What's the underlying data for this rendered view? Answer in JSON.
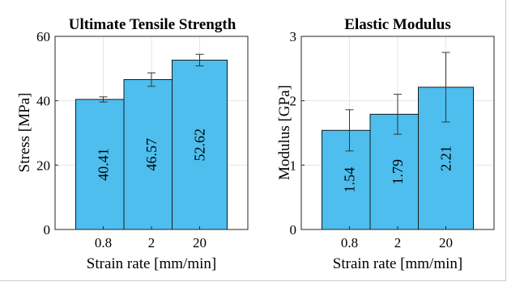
{
  "chart_data": [
    {
      "type": "bar",
      "title": "Ultimate Tensile Strength",
      "xlabel": "Strain rate [mm/min]",
      "ylabel": "Stress [MPa]",
      "categories": [
        "0.8",
        "2",
        "20"
      ],
      "values": [
        40.41,
        46.57,
        52.62
      ],
      "value_labels": [
        "40.41",
        "46.57",
        "52.62"
      ],
      "error": [
        0.8,
        2.1,
        1.8
      ],
      "ylim": [
        0,
        60
      ],
      "yticks": [
        "0",
        "20",
        "40",
        "60"
      ],
      "grid": true,
      "bar_color": "#4DBEEE"
    },
    {
      "type": "bar",
      "title": "Elastic Modulus",
      "xlabel": "Strain rate [mm/min]",
      "ylabel": "Modulus [GPa]",
      "categories": [
        "0.8",
        "2",
        "20"
      ],
      "values": [
        1.54,
        1.79,
        2.21
      ],
      "value_labels": [
        "1.54",
        "1.79",
        "2.21"
      ],
      "error": [
        0.32,
        0.31,
        0.54
      ],
      "ylim": [
        0,
        3
      ],
      "yticks": [
        "0",
        "1",
        "2",
        "3"
      ],
      "grid": true,
      "bar_color": "#4DBEEE"
    }
  ]
}
